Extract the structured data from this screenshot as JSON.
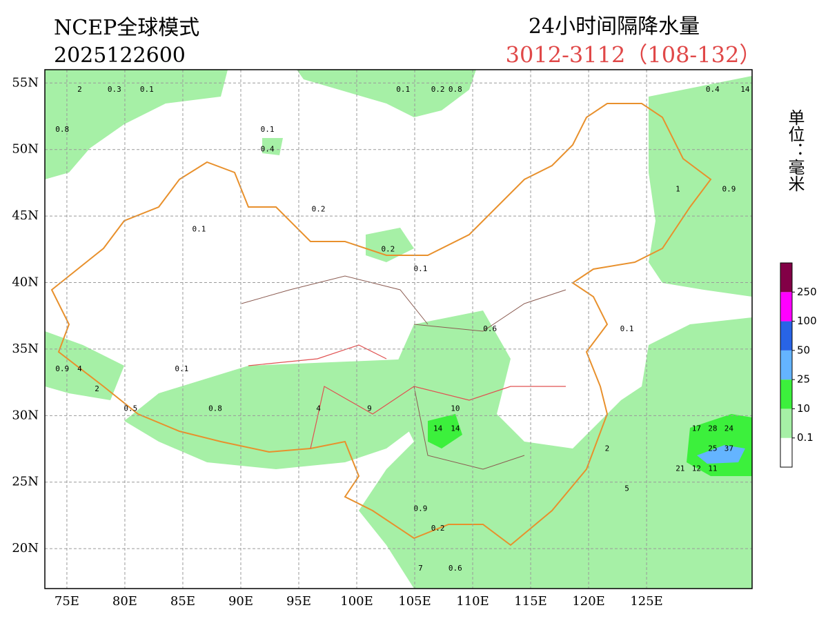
{
  "header": {
    "model": "NCEP全球模式",
    "init_time": "2025122600",
    "product": "24小时间隔降水量",
    "period": "3012-3112（108-132）",
    "unit": "单位：毫米"
  },
  "map": {
    "xlim": [
      73.1,
      134.1
    ],
    "ylim": [
      17,
      56
    ],
    "xticks": [
      {
        "value": 75,
        "label": "75E"
      },
      {
        "value": 80,
        "label": "80E"
      },
      {
        "value": 85,
        "label": "85E"
      },
      {
        "value": 90,
        "label": "90E"
      },
      {
        "value": 95,
        "label": "95E"
      },
      {
        "value": 100,
        "label": "100E"
      },
      {
        "value": 105,
        "label": "105E"
      },
      {
        "value": 110,
        "label": "110E"
      },
      {
        "value": 115,
        "label": "115E"
      },
      {
        "value": 120,
        "label": "120E"
      },
      {
        "value": 125,
        "label": "125E"
      }
    ],
    "yticks": [
      {
        "value": 20,
        "label": "20N"
      },
      {
        "value": 25,
        "label": "25N"
      },
      {
        "value": 30,
        "label": "30N"
      },
      {
        "value": 35,
        "label": "35N"
      },
      {
        "value": 40,
        "label": "40N"
      },
      {
        "value": 45,
        "label": "45N"
      },
      {
        "value": 50,
        "label": "50N"
      },
      {
        "value": 55,
        "label": "55N"
      }
    ],
    "grid": true,
    "labels": [
      {
        "lon": 92.3,
        "lat": 51.5,
        "value": 0.1
      },
      {
        "lon": 92.3,
        "lat": 50.0,
        "value": 0.4
      },
      {
        "lon": 96.7,
        "lat": 45.5,
        "value": 0.2
      },
      {
        "lon": 86.4,
        "lat": 44.0,
        "value": 0.1
      },
      {
        "lon": 102.7,
        "lat": 42.5,
        "value": 0.2
      },
      {
        "lon": 105.5,
        "lat": 41.0,
        "value": 0.1
      },
      {
        "lon": 123.3,
        "lat": 36.5,
        "value": 0.1
      },
      {
        "lon": 84.9,
        "lat": 33.5,
        "value": 0.1
      },
      {
        "lon": 111.5,
        "lat": 36.5,
        "value": 0.6
      },
      {
        "lon": 107.0,
        "lat": 29.0,
        "value": 14
      },
      {
        "lon": 108.5,
        "lat": 29.0,
        "value": 14
      },
      {
        "lon": 108.5,
        "lat": 30.5,
        "value": 10
      },
      {
        "lon": 130.7,
        "lat": 27.5,
        "value": 25
      },
      {
        "lon": 132.1,
        "lat": 27.5,
        "value": 37
      },
      {
        "lon": 130.7,
        "lat": 29.0,
        "value": 28
      },
      {
        "lon": 132.1,
        "lat": 29.0,
        "value": 24
      },
      {
        "lon": 129.3,
        "lat": 29.0,
        "value": 17
      },
      {
        "lon": 127.9,
        "lat": 26.0,
        "value": 21
      },
      {
        "lon": 129.3,
        "lat": 26.0,
        "value": 12
      },
      {
        "lon": 130.7,
        "lat": 26.0,
        "value": 11
      },
      {
        "lon": 121.6,
        "lat": 27.5,
        "value": 2
      },
      {
        "lon": 123.3,
        "lat": 24.5,
        "value": 5
      },
      {
        "lon": 105.5,
        "lat": 23.0,
        "value": 0.9
      },
      {
        "lon": 107.0,
        "lat": 21.5,
        "value": 0.2
      },
      {
        "lon": 105.5,
        "lat": 18.5,
        "value": 7
      },
      {
        "lon": 108.5,
        "lat": 18.5,
        "value": 0.6
      },
      {
        "lon": 101.1,
        "lat": 30.5,
        "value": 9
      },
      {
        "lon": 96.7,
        "lat": 30.5,
        "value": 4
      },
      {
        "lon": 87.8,
        "lat": 30.5,
        "value": 0.8
      },
      {
        "lon": 74.6,
        "lat": 33.5,
        "value": 0.9
      },
      {
        "lon": 76.1,
        "lat": 33.5,
        "value": 4
      },
      {
        "lon": 77.6,
        "lat": 32.0,
        "value": 2
      },
      {
        "lon": 80.5,
        "lat": 30.5,
        "value": 0.5
      },
      {
        "lon": 74.6,
        "lat": 51.5,
        "value": 0.8
      },
      {
        "lon": 76.1,
        "lat": 54.5,
        "value": 2
      },
      {
        "lon": 79.1,
        "lat": 54.5,
        "value": 0.3
      },
      {
        "lon": 81.9,
        "lat": 54.5,
        "value": 0.1
      },
      {
        "lon": 104.0,
        "lat": 54.5,
        "value": 0.1
      },
      {
        "lon": 107.0,
        "lat": 54.5,
        "value": 0.2
      },
      {
        "lon": 108.5,
        "lat": 54.5,
        "value": 0.8
      },
      {
        "lon": 127.7,
        "lat": 47.0,
        "value": 1
      },
      {
        "lon": 132.1,
        "lat": 47.0,
        "value": 0.9
      },
      {
        "lon": 130.7,
        "lat": 54.5,
        "value": 0.4
      },
      {
        "lon": 133.5,
        "lat": 54.5,
        "value": 14
      }
    ]
  },
  "legend": {
    "colors": [
      "#ffffff",
      "#a6f0a6",
      "#3cf03c",
      "#64b4ff",
      "#2864e6",
      "#ff00ff",
      "#820046"
    ],
    "ticks": [
      0.1,
      10,
      25,
      50,
      100,
      250
    ]
  }
}
